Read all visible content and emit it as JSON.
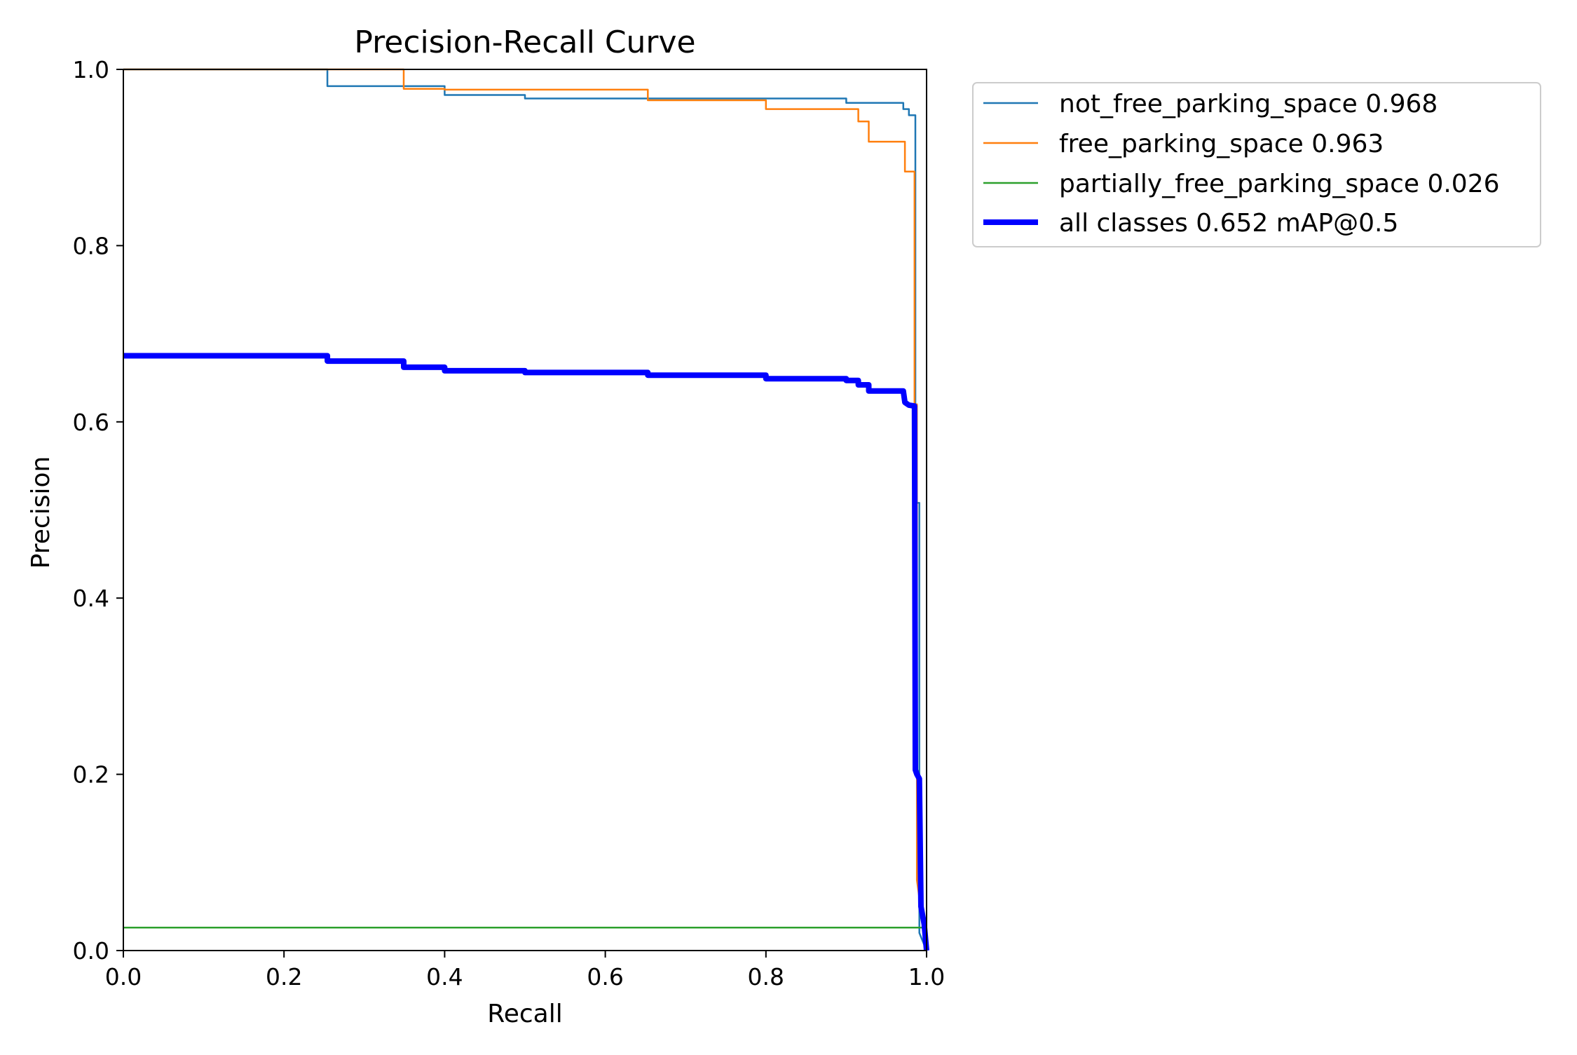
{
  "chart_data": {
    "type": "line",
    "title": "Precision-Recall Curve",
    "xlabel": "Recall",
    "ylabel": "Precision",
    "xlim": [
      0.0,
      1.0
    ],
    "ylim": [
      0.0,
      1.0
    ],
    "xticks": [
      "0.0",
      "0.2",
      "0.4",
      "0.6",
      "0.8",
      "1.0"
    ],
    "yticks": [
      "0.0",
      "0.2",
      "0.4",
      "0.6",
      "0.8",
      "1.0"
    ],
    "grid": false,
    "legend_position": "outside-right-top",
    "series": [
      {
        "name": "not_free_parking_space 0.968",
        "color": "#1f77b4",
        "linewidth": "thin",
        "x": [
          0.0,
          0.254,
          0.254,
          0.4,
          0.4,
          0.5,
          0.5,
          0.9,
          0.9,
          0.971,
          0.971,
          0.978,
          0.978,
          0.986,
          0.986,
          0.991,
          0.991,
          1.0
        ],
        "y": [
          1.0,
          1.0,
          0.981,
          0.981,
          0.971,
          0.971,
          0.967,
          0.967,
          0.962,
          0.962,
          0.955,
          0.955,
          0.948,
          0.948,
          0.508,
          0.508,
          0.02,
          0.0
        ]
      },
      {
        "name": "free_parking_space 0.963",
        "color": "#ff7f0e",
        "linewidth": "thin",
        "x": [
          0.0,
          0.349,
          0.349,
          0.4,
          0.4,
          0.653,
          0.653,
          0.8,
          0.8,
          0.915,
          0.915,
          0.928,
          0.928,
          0.973,
          0.973,
          0.985,
          0.985,
          0.988,
          0.988,
          1.0
        ],
        "y": [
          1.0,
          1.0,
          0.978,
          0.978,
          0.977,
          0.977,
          0.965,
          0.965,
          0.955,
          0.955,
          0.941,
          0.941,
          0.918,
          0.918,
          0.884,
          0.884,
          0.62,
          0.62,
          0.08,
          0.0
        ]
      },
      {
        "name": "partially_free_parking_space 0.026",
        "color": "#2ca02c",
        "linewidth": "thin",
        "x": [
          0.0,
          1.0
        ],
        "y": [
          0.026,
          0.026
        ]
      },
      {
        "name": "all classes 0.652 mAP@0.5",
        "color": "#0000ff",
        "linewidth": "thick",
        "x": [
          0.0,
          0.254,
          0.254,
          0.349,
          0.349,
          0.4,
          0.4,
          0.5,
          0.5,
          0.653,
          0.653,
          0.8,
          0.8,
          0.9,
          0.9,
          0.915,
          0.915,
          0.928,
          0.928,
          0.971,
          0.973,
          0.978,
          0.985,
          0.986,
          0.988,
          0.991,
          0.993,
          0.997,
          1.0
        ],
        "y": [
          0.675,
          0.675,
          0.669,
          0.669,
          0.662,
          0.662,
          0.658,
          0.658,
          0.656,
          0.656,
          0.653,
          0.653,
          0.649,
          0.649,
          0.647,
          0.647,
          0.642,
          0.642,
          0.635,
          0.635,
          0.622,
          0.619,
          0.618,
          0.205,
          0.2,
          0.195,
          0.05,
          0.03,
          0.0
        ]
      }
    ]
  }
}
